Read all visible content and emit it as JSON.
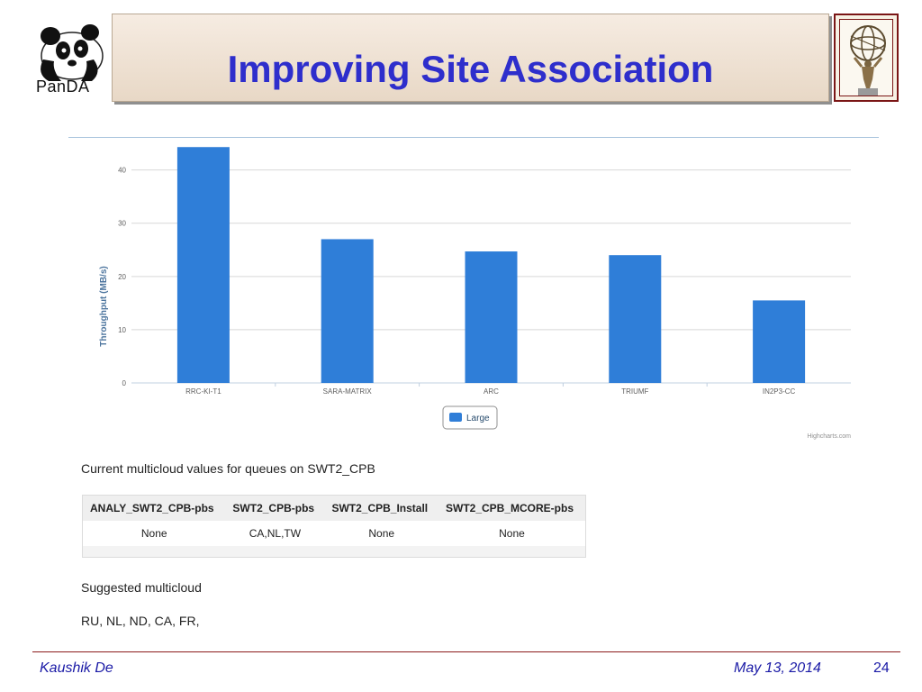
{
  "header": {
    "title": "Improving Site Association",
    "left_logo_text": "PanDA",
    "left_logo_icon": "panda-icon",
    "right_logo_icon": "atlas-statue-icon"
  },
  "chart_data": {
    "type": "bar",
    "categories": [
      "RRC-KI-T1",
      "SARA-MATRIX",
      "ARC",
      "TRIUMF",
      "IN2P3-CC"
    ],
    "series": [
      {
        "name": "Large",
        "values": [
          44.3,
          27.0,
          24.7,
          24.0,
          15.5
        ]
      }
    ],
    "ylabel": "Throughput (MB/s)",
    "ylim": [
      0,
      44
    ],
    "yticks": [
      0,
      10,
      20,
      30,
      40
    ],
    "grid": true,
    "legend": "bottom-center",
    "credit": "Highcharts.com",
    "bar_color": "#2f7ed8"
  },
  "content": {
    "caption": "Current multicloud values for queues on SWT2_CPB",
    "table": {
      "headers": [
        "ANALY_SWT2_CPB-pbs",
        "SWT2_CPB-pbs",
        "SWT2_CPB_Install",
        "SWT2_CPB_MCORE-pbs"
      ],
      "row": [
        "None",
        "CA,NL,TW",
        "None",
        "None"
      ]
    },
    "suggested_label": "Suggested multicloud",
    "suggested_value": "RU, NL, ND, CA, FR,"
  },
  "footer": {
    "author": "Kaushik De",
    "date": "May 13, 2014",
    "page": "24"
  }
}
